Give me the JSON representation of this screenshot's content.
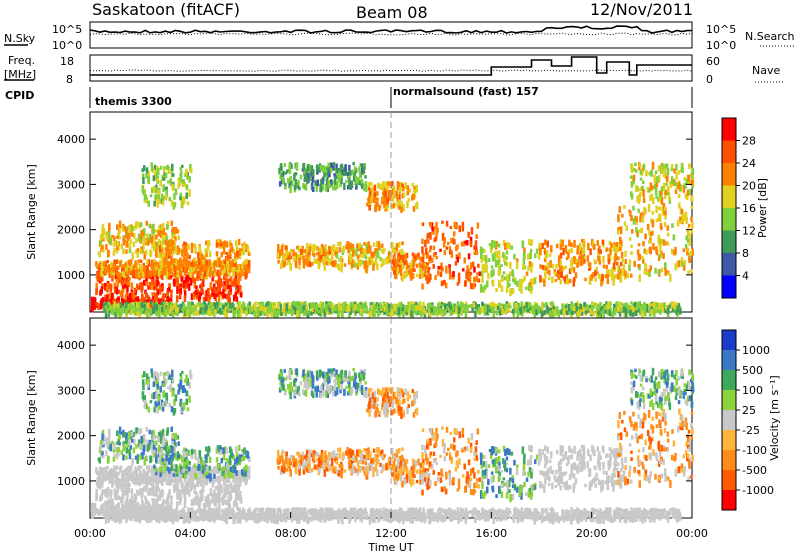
{
  "header": {
    "station": "Saskatoon (fitACF)",
    "beam": "Beam 08",
    "date": "12/Nov/2011"
  },
  "top_panels": {
    "nsky_label": "N.Sky",
    "nsky_ticks": [
      "10^5",
      "10^0"
    ],
    "nsearch_label": "N.Search",
    "nsearch_ticks": [
      "10^5",
      "10^0"
    ],
    "freq_label_1": "Freq.",
    "freq_label_2": "[MHz]",
    "freq_ticks": [
      "18",
      "8"
    ],
    "nave_label": "Nave",
    "nave_ticks": [
      "60",
      "0"
    ],
    "cpid_label": "CPID",
    "cpid_modes": [
      {
        "name": "themis 3300",
        "start_hour": 0
      },
      {
        "name": "normalsound (fast) 157",
        "start_hour": 12
      }
    ]
  },
  "chart_data": [
    {
      "type": "heatmap",
      "name": "power-panel",
      "ylabel": "Slant Range [km]",
      "xlabel": "",
      "xlim": [
        0,
        24
      ],
      "ylim": [
        180,
        4600
      ],
      "yticks": [
        "1000",
        "2000",
        "3000",
        "4000"
      ],
      "ytick_values": [
        1000,
        2000,
        3000,
        4000
      ],
      "colorbar": {
        "label": "Power [dB]",
        "ticks": [
          "4",
          "8",
          "12",
          "16",
          "20",
          "24",
          "28"
        ],
        "colors": [
          "#0000ff",
          "#3c5aa8",
          "#3f9a5a",
          "#7fd03c",
          "#e0d020",
          "#ff8000",
          "#ff5000",
          "#ff0000"
        ]
      }
    },
    {
      "type": "heatmap",
      "name": "velocity-panel",
      "ylabel": "Slant Range [km]",
      "xlabel": "Time UT",
      "xlim": [
        0,
        24
      ],
      "ylim": [
        180,
        4600
      ],
      "yticks": [
        "1000",
        "2000",
        "3000",
        "4000"
      ],
      "ytick_values": [
        1000,
        2000,
        3000,
        4000
      ],
      "xticks": [
        "00:00",
        "04:00",
        "08:00",
        "12:00",
        "16:00",
        "20:00",
        "00:00"
      ],
      "xtick_values": [
        0,
        4,
        8,
        12,
        16,
        20,
        24
      ],
      "ground_scatter_color": "#c8c8c8",
      "colorbar": {
        "label": "Velocity [m s⁻¹]",
        "ticks": [
          "1000",
          "500",
          "100",
          "25",
          "-25",
          "-100",
          "-500",
          "-1000"
        ],
        "colors": [
          "#1a3cc8",
          "#3c78c8",
          "#3caa5a",
          "#8cd23c",
          "#c8c8c8",
          "#ffb43c",
          "#ff8c1a",
          "#ff5a00",
          "#ff0000"
        ]
      }
    }
  ]
}
